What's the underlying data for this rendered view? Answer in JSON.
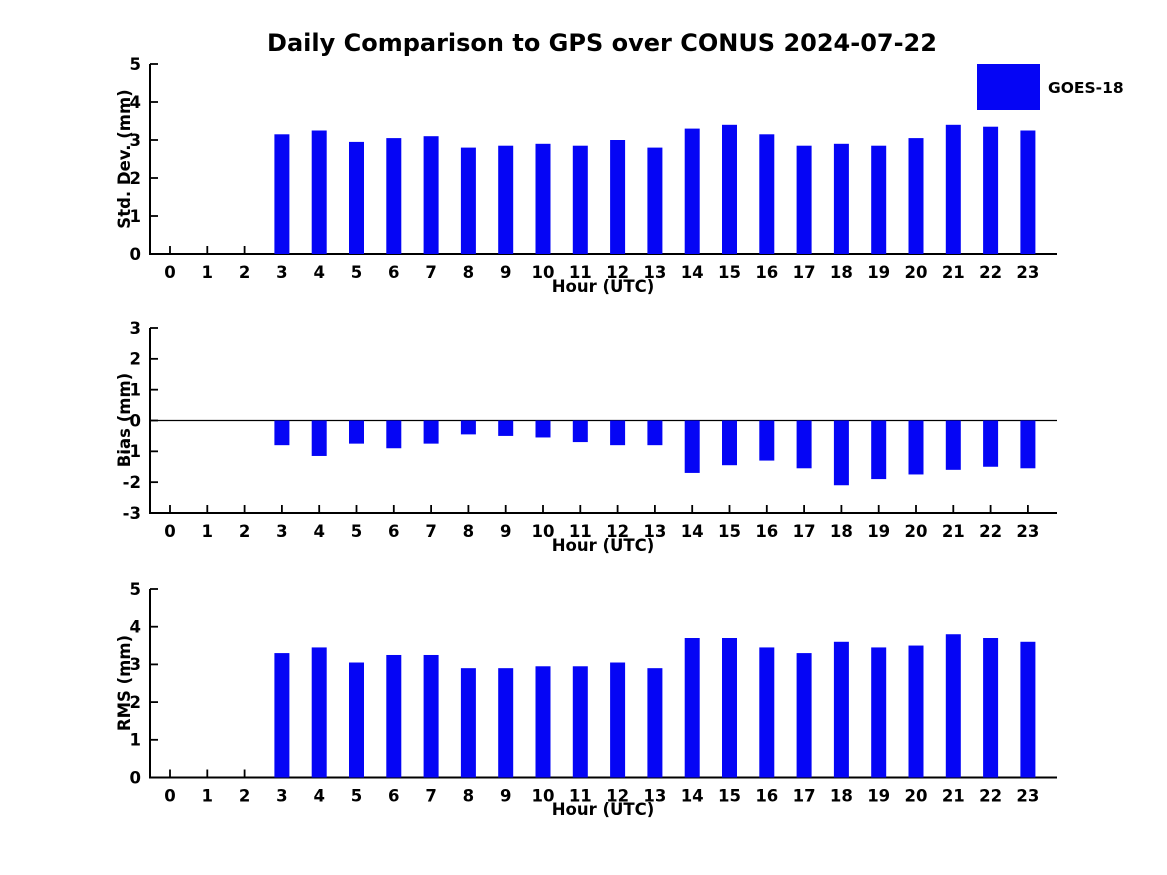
{
  "title": "Daily Comparison to GPS over CONUS 2024-07-22",
  "legend": {
    "label": "GOES-18",
    "color": "#0505f5"
  },
  "colors": {
    "bar": "#0505f5",
    "axis": "#000000",
    "text": "#000000",
    "background": "#ffffff"
  },
  "chart_data": [
    {
      "type": "bar",
      "panel": "std_dev",
      "title": "",
      "xlabel": "Hour (UTC)",
      "ylabel": "Std. Dev. (mm)",
      "ylim": [
        0,
        5
      ],
      "yticks": [
        0,
        1,
        2,
        3,
        4,
        5
      ],
      "grid": false,
      "legend_position": "upper right",
      "categories": [
        0,
        1,
        2,
        3,
        4,
        5,
        6,
        7,
        8,
        9,
        10,
        11,
        12,
        13,
        14,
        15,
        16,
        17,
        18,
        19,
        20,
        21,
        22,
        23
      ],
      "series": [
        {
          "name": "GOES-18",
          "values": [
            null,
            null,
            null,
            3.15,
            3.25,
            2.95,
            3.05,
            3.1,
            2.8,
            2.85,
            2.9,
            2.85,
            3.0,
            2.8,
            3.3,
            3.4,
            3.15,
            2.85,
            2.9,
            2.85,
            3.05,
            3.4,
            3.35,
            3.25
          ]
        }
      ]
    },
    {
      "type": "bar",
      "panel": "bias",
      "title": "",
      "xlabel": "Hour (UTC)",
      "ylabel": "Bias (mm)",
      "ylim": [
        -3,
        3
      ],
      "yticks": [
        -3,
        -2,
        -1,
        0,
        1,
        2,
        3
      ],
      "zero_line": true,
      "grid": false,
      "categories": [
        0,
        1,
        2,
        3,
        4,
        5,
        6,
        7,
        8,
        9,
        10,
        11,
        12,
        13,
        14,
        15,
        16,
        17,
        18,
        19,
        20,
        21,
        22,
        23
      ],
      "series": [
        {
          "name": "GOES-18",
          "values": [
            null,
            null,
            null,
            -0.8,
            -1.15,
            -0.75,
            -0.9,
            -0.75,
            -0.45,
            -0.5,
            -0.55,
            -0.7,
            -0.8,
            -0.8,
            -1.7,
            -1.45,
            -1.3,
            -1.55,
            -2.1,
            -1.9,
            -1.75,
            -1.6,
            -1.5,
            -1.55
          ]
        }
      ]
    },
    {
      "type": "bar",
      "panel": "rms",
      "title": "",
      "xlabel": "Hour (UTC)",
      "ylabel": "RMS (mm)",
      "ylim": [
        0,
        5
      ],
      "yticks": [
        0,
        1,
        2,
        3,
        4,
        5
      ],
      "grid": false,
      "categories": [
        0,
        1,
        2,
        3,
        4,
        5,
        6,
        7,
        8,
        9,
        10,
        11,
        12,
        13,
        14,
        15,
        16,
        17,
        18,
        19,
        20,
        21,
        22,
        23
      ],
      "series": [
        {
          "name": "GOES-18",
          "values": [
            null,
            null,
            null,
            3.3,
            3.45,
            3.05,
            3.25,
            3.25,
            2.9,
            2.9,
            2.95,
            2.95,
            3.05,
            2.9,
            3.7,
            3.7,
            3.45,
            3.3,
            3.6,
            3.45,
            3.5,
            3.8,
            3.7,
            3.6
          ]
        }
      ]
    }
  ]
}
